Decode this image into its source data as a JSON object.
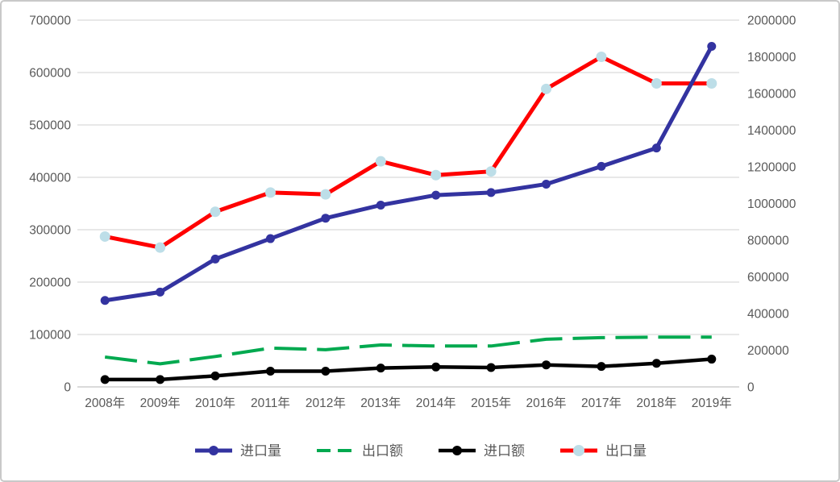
{
  "chart_data": {
    "type": "line",
    "title": "",
    "categories": [
      "2008年",
      "2009年",
      "2010年",
      "2011年",
      "2012年",
      "2013年",
      "2014年",
      "2015年",
      "2016年",
      "2017年",
      "2018年",
      "2019年"
    ],
    "series": [
      {
        "id": "import-volume",
        "name": "进口量",
        "axis": "left",
        "color": "#3333A0",
        "dashed": false,
        "marker": "circle",
        "marker_color": "#3333A0",
        "stroke_width": 5,
        "marker_radius": 5.5,
        "values": [
          165000,
          181000,
          244000,
          283000,
          322000,
          347000,
          366000,
          371000,
          387000,
          421000,
          456000,
          650000
        ]
      },
      {
        "id": "export-value",
        "name": "出口额",
        "axis": "left",
        "color": "#00A94F",
        "dashed": true,
        "marker": "none",
        "marker_color": null,
        "stroke_width": 4,
        "marker_radius": 0,
        "values": [
          57000,
          44000,
          58000,
          74000,
          71000,
          80000,
          78000,
          78000,
          91000,
          94000,
          95000,
          95000
        ]
      },
      {
        "id": "import-value",
        "name": "进口额",
        "axis": "left",
        "color": "#000000",
        "dashed": false,
        "marker": "circle",
        "marker_color": "#000000",
        "stroke_width": 4.5,
        "marker_radius": 5.5,
        "values": [
          14000,
          14000,
          21000,
          30000,
          30000,
          36000,
          38000,
          37000,
          42000,
          39000,
          45000,
          53000
        ]
      },
      {
        "id": "export-volume",
        "name": "出口量",
        "axis": "right",
        "color": "#FF0000",
        "dashed": false,
        "marker": "circle",
        "marker_color": "#BDDEE8",
        "stroke_width": 5,
        "marker_radius": 6.5,
        "values": [
          820000,
          760000,
          955000,
          1060000,
          1050000,
          1230000,
          1155000,
          1175000,
          1625000,
          1800000,
          1655000,
          1655000
        ]
      }
    ],
    "left_axis": {
      "min": 0,
      "max": 700000,
      "step": 100000,
      "tick_labels": [
        "700000",
        "600000",
        "500000",
        "400000",
        "300000",
        "200000",
        "100000",
        "0"
      ]
    },
    "right_axis": {
      "min": 0,
      "max": 2000000,
      "step": 200000,
      "tick_labels": [
        "2000000",
        "1800000",
        "1600000",
        "1400000",
        "1200000",
        "1000000",
        "800000",
        "600000",
        "400000",
        "200000",
        "0"
      ]
    },
    "grid": true,
    "legend_position": "bottom",
    "axis_text_color": "#595959",
    "gridline_color": "#D9D9D9",
    "baseline_color": "#C3C3C3"
  }
}
